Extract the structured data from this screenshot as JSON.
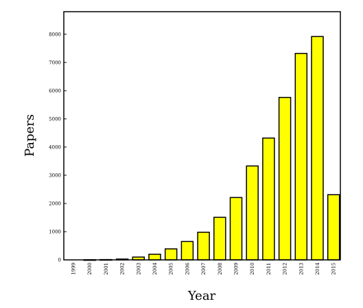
{
  "chart_data": {
    "type": "bar",
    "title": "",
    "xlabel": "Year",
    "ylabel": "Papers",
    "categories": [
      "1999",
      "2000",
      "2001",
      "2002",
      "2003",
      "2004",
      "2005",
      "2006",
      "2007",
      "2008",
      "2009",
      "2010",
      "2011",
      "2012",
      "2013",
      "2014",
      "2015"
    ],
    "values": [
      0,
      5,
      10,
      30,
      100,
      200,
      390,
      650,
      980,
      1510,
      2210,
      3330,
      4320,
      5760,
      7320,
      7920,
      2310
    ],
    "ylim": [
      0,
      8800
    ],
    "yticks": [
      "0",
      "1000",
      "2000",
      "3000",
      "4000",
      "5000",
      "6000",
      "7000",
      "8000"
    ],
    "grid": false,
    "legend": "none",
    "colors": {
      "bar_fill": "#ffff00",
      "bar_stroke": "#000000",
      "axis": "#000000"
    }
  }
}
